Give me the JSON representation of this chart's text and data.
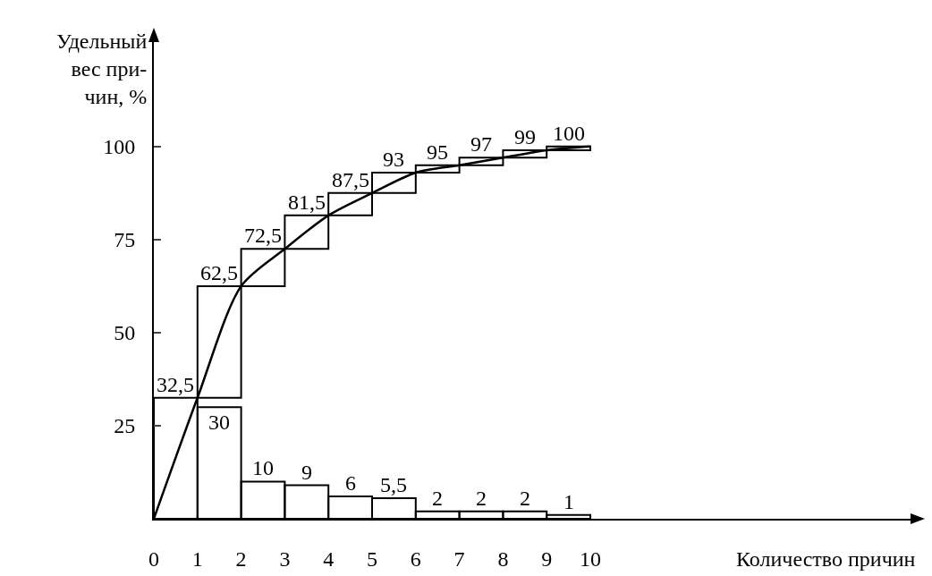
{
  "chart_data": {
    "type": "bar",
    "xlabel": "Количество причин",
    "ylabel": "Удельный\nвес при-\nчин, %",
    "series": [
      {
        "color": "#000000",
        "x": [
          0.5,
          1.5,
          2.5,
          3.5,
          4.5,
          5.5,
          6.5,
          7.5,
          8.5,
          9.5
        ],
        "values": [
          32.5,
          30,
          10,
          9,
          6,
          5.5,
          2,
          2,
          2,
          1
        ],
        "value_labels": [
          "32,5",
          "30",
          "10",
          "9",
          "6",
          "5,5",
          "2",
          "2",
          "2",
          "1"
        ]
      },
      {
        "color": "#000000",
        "x": [
          1.5,
          2.5,
          3.5,
          4.5,
          5.5,
          6.5,
          7.5,
          8.5,
          9.5
        ],
        "base": [
          32.5,
          62.5,
          72.5,
          81.5,
          87.5,
          93,
          95,
          97,
          99
        ],
        "values": [
          30,
          10,
          9,
          6,
          5.5,
          2,
          2,
          2,
          1
        ],
        "value_labels": [
          "62,5",
          "72,5",
          "81,5",
          "87,5",
          "93",
          "95",
          "97",
          "99",
          "100"
        ]
      },
      {
        "type": "line",
        "color": "#000000",
        "x": [
          0,
          1,
          2,
          3,
          4,
          5,
          6,
          7,
          8,
          9,
          10
        ],
        "values": [
          0,
          32.5,
          62.5,
          72.5,
          81.5,
          87.5,
          93,
          95,
          97,
          99,
          100
        ]
      }
    ],
    "xlim": [
      0,
      17.5
    ],
    "xticks": [
      0,
      1,
      2,
      3,
      4,
      5,
      6,
      7,
      8,
      9,
      10
    ],
    "ylim": [
      0,
      130
    ],
    "yticks": [
      25,
      50,
      75,
      100
    ],
    "grid": false,
    "marker": "none",
    "line_style": "solid"
  }
}
